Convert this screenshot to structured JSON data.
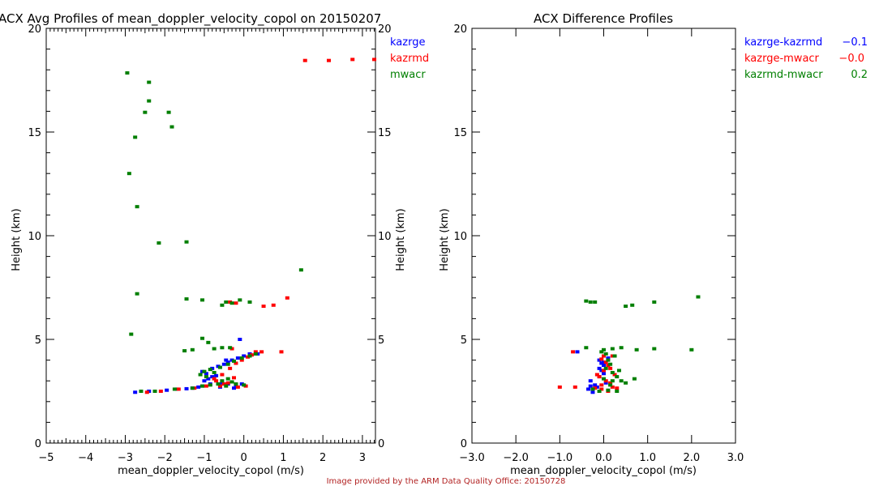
{
  "credit": "Image provided by the ARM Data Quality Office: 20150728",
  "colors": {
    "kazrge": "#0000ff",
    "kazrmd": "#ff0000",
    "mwacr": "#007f00",
    "axis": "#000000",
    "credit": "#b22222"
  },
  "chart_data": [
    {
      "type": "scatter",
      "title": "ACX Avg Profiles of mean_doppler_velocity_copol on 20150207",
      "xlabel": "mean_doppler_velocity_copol (m/s)",
      "ylabel": "Height (km)",
      "ylabel_right": "Height (km)",
      "xlim": [
        -5,
        3.33
      ],
      "ylim": [
        0,
        20
      ],
      "xticks": [
        -5,
        -4,
        -3,
        -2,
        -1,
        0,
        1,
        2,
        3
      ],
      "xtick_labels": [
        "−5",
        "−4",
        "−3",
        "−2",
        "−1",
        "0",
        "1",
        "2",
        "3"
      ],
      "yticks": [
        0,
        5,
        10,
        15,
        20
      ],
      "ytick_labels": [
        "0",
        "5",
        "10",
        "15",
        "20"
      ],
      "grid": false,
      "legend_position": "top-right (outside)",
      "series": [
        {
          "name": "kazrge",
          "color": "#0000ff",
          "points": [
            [
              -2.75,
              2.45
            ],
            [
              -2.4,
              2.5
            ],
            [
              -1.95,
              2.55
            ],
            [
              -1.7,
              2.6
            ],
            [
              -1.45,
              2.62
            ],
            [
              -1.3,
              2.65
            ],
            [
              -1.15,
              2.7
            ],
            [
              -1.05,
              2.75
            ],
            [
              -1.0,
              3.0
            ],
            [
              -0.9,
              3.1
            ],
            [
              -0.8,
              3.2
            ],
            [
              -0.95,
              3.35
            ],
            [
              -1.05,
              3.45
            ],
            [
              -0.8,
              3.6
            ],
            [
              -0.65,
              3.7
            ],
            [
              -0.5,
              3.8
            ],
            [
              -0.4,
              3.9
            ],
            [
              -0.3,
              4.0
            ],
            [
              -0.15,
              4.1
            ],
            [
              0.0,
              4.2
            ],
            [
              0.15,
              4.3
            ],
            [
              0.35,
              4.3
            ],
            [
              -0.55,
              2.9
            ],
            [
              -0.4,
              2.85
            ],
            [
              -0.2,
              2.8
            ],
            [
              -0.05,
              2.85
            ],
            [
              -0.6,
              2.7
            ],
            [
              -0.25,
              2.65
            ],
            [
              -0.1,
              5.0
            ],
            [
              -0.45,
              4.0
            ],
            [
              -0.7,
              3.25
            ],
            [
              -0.85,
              2.85
            ]
          ]
        },
        {
          "name": "kazrmd",
          "color": "#ff0000",
          "points": [
            [
              1.55,
              18.45
            ],
            [
              2.15,
              18.45
            ],
            [
              2.75,
              18.5
            ],
            [
              3.3,
              18.5
            ],
            [
              1.1,
              7.0
            ],
            [
              0.5,
              6.6
            ],
            [
              0.75,
              6.65
            ],
            [
              -0.35,
              6.8
            ],
            [
              -0.2,
              6.75
            ],
            [
              0.95,
              4.4
            ],
            [
              0.45,
              4.4
            ],
            [
              0.3,
              4.4
            ],
            [
              -0.3,
              4.55
            ],
            [
              -2.45,
              2.45
            ],
            [
              -2.1,
              2.5
            ],
            [
              -1.65,
              2.6
            ],
            [
              -1.25,
              2.65
            ],
            [
              -0.95,
              2.75
            ],
            [
              -0.75,
              3.1
            ],
            [
              -0.55,
              3.3
            ],
            [
              -0.35,
              3.6
            ],
            [
              -0.2,
              3.85
            ],
            [
              -0.05,
              4.0
            ],
            [
              0.1,
              4.15
            ],
            [
              0.2,
              4.25
            ],
            [
              -0.6,
              2.75
            ],
            [
              -0.4,
              2.9
            ],
            [
              -0.15,
              2.7
            ],
            [
              0.05,
              2.75
            ],
            [
              -0.5,
              2.85
            ],
            [
              -0.25,
              3.15
            ],
            [
              -0.7,
              3.0
            ]
          ]
        },
        {
          "name": "mwacr",
          "color": "#007f00",
          "points": [
            [
              -2.95,
              17.85
            ],
            [
              -2.4,
              17.4
            ],
            [
              -2.4,
              16.5
            ],
            [
              -2.5,
              15.95
            ],
            [
              -1.9,
              15.95
            ],
            [
              -1.82,
              15.25
            ],
            [
              -2.75,
              14.75
            ],
            [
              -2.9,
              13.0
            ],
            [
              -2.7,
              11.4
            ],
            [
              -2.15,
              9.65
            ],
            [
              -1.45,
              9.7
            ],
            [
              1.45,
              8.35
            ],
            [
              -2.7,
              7.2
            ],
            [
              -1.45,
              6.95
            ],
            [
              -1.05,
              6.9
            ],
            [
              -0.55,
              6.65
            ],
            [
              -0.45,
              6.8
            ],
            [
              -0.3,
              6.75
            ],
            [
              -0.1,
              6.9
            ],
            [
              0.15,
              6.8
            ],
            [
              -2.85,
              5.25
            ],
            [
              -1.05,
              5.05
            ],
            [
              -0.9,
              4.85
            ],
            [
              -1.5,
              4.45
            ],
            [
              -1.3,
              4.5
            ],
            [
              -0.75,
              4.55
            ],
            [
              -0.55,
              4.6
            ],
            [
              -0.35,
              4.6
            ],
            [
              -2.6,
              2.5
            ],
            [
              -2.25,
              2.5
            ],
            [
              -1.75,
              2.6
            ],
            [
              -1.3,
              2.65
            ],
            [
              -1.05,
              2.75
            ],
            [
              -0.85,
              2.8
            ],
            [
              -0.95,
              3.2
            ],
            [
              -1.1,
              3.3
            ],
            [
              -1.0,
              3.45
            ],
            [
              -0.85,
              3.55
            ],
            [
              -0.6,
              3.65
            ],
            [
              -0.4,
              3.8
            ],
            [
              -0.25,
              3.95
            ],
            [
              -0.05,
              4.1
            ],
            [
              0.15,
              4.2
            ],
            [
              0.3,
              4.3
            ],
            [
              -0.65,
              2.85
            ],
            [
              -0.45,
              2.75
            ],
            [
              -0.3,
              2.95
            ],
            [
              -0.2,
              2.85
            ],
            [
              0.0,
              2.8
            ],
            [
              -0.55,
              3.0
            ],
            [
              -0.75,
              3.4
            ],
            [
              -0.4,
              3.1
            ]
          ]
        }
      ]
    },
    {
      "type": "scatter",
      "title": "ACX Difference Profiles",
      "xlabel": "mean_doppler_velocity_copol (m/s)",
      "ylabel": "Height (km)",
      "xlim": [
        -3.0,
        3.0
      ],
      "ylim": [
        0,
        20
      ],
      "xticks": [
        -3,
        -2,
        -1,
        0,
        1,
        2,
        3
      ],
      "xtick_labels": [
        "−3.0",
        "−2.0",
        "−1.0",
        "0.0",
        "1.0",
        "2.0",
        "3.0"
      ],
      "yticks": [
        0,
        5,
        10,
        15,
        20
      ],
      "ytick_labels": [
        "0",
        "5",
        "10",
        "15",
        "20"
      ],
      "grid": false,
      "legend_position": "top-right (outside)",
      "legend": [
        {
          "name": "kazrge-kazrmd",
          "value": "−0.1",
          "color": "#0000ff"
        },
        {
          "name": "kazrge-mwacr",
          "value": "−0.0",
          "color": "#ff0000"
        },
        {
          "name": "kazrmd-mwacr",
          "value": "0.2",
          "color": "#007f00"
        }
      ],
      "series": [
        {
          "name": "kazrge-kazrmd",
          "color": "#0000ff",
          "points": [
            [
              -0.6,
              4.4
            ],
            [
              -0.1,
              4.0
            ],
            [
              -0.05,
              3.85
            ],
            [
              0.0,
              3.75
            ],
            [
              -0.1,
              3.6
            ],
            [
              -0.05,
              3.5
            ],
            [
              0.0,
              3.9
            ],
            [
              -0.3,
              3.0
            ],
            [
              -0.2,
              2.8
            ],
            [
              -0.35,
              2.6
            ],
            [
              -0.25,
              2.45
            ],
            [
              -0.1,
              3.2
            ],
            [
              0.0,
              3.35
            ],
            [
              -0.15,
              2.7
            ],
            [
              0.05,
              2.9
            ],
            [
              -0.3,
              2.75
            ],
            [
              0.1,
              4.1
            ]
          ]
        },
        {
          "name": "kazrge-mwacr",
          "color": "#ff0000",
          "points": [
            [
              -1.0,
              2.7
            ],
            [
              -0.65,
              2.7
            ],
            [
              -0.7,
              4.4
            ],
            [
              0.0,
              4.2
            ],
            [
              -0.05,
              4.05
            ],
            [
              0.05,
              3.9
            ],
            [
              0.1,
              3.75
            ],
            [
              0.0,
              3.5
            ],
            [
              0.15,
              3.6
            ],
            [
              -0.1,
              3.2
            ],
            [
              0.05,
              3.0
            ],
            [
              0.15,
              2.9
            ],
            [
              0.2,
              2.7
            ],
            [
              -0.05,
              2.6
            ],
            [
              0.1,
              2.5
            ],
            [
              -0.2,
              2.65
            ],
            [
              0.3,
              2.65
            ],
            [
              0.25,
              3.3
            ],
            [
              -0.15,
              3.3
            ],
            [
              0.2,
              4.2
            ],
            [
              -0.05,
              2.8
            ]
          ]
        },
        {
          "name": "kazrmd-mwacr",
          "color": "#007f00",
          "points": [
            [
              -0.4,
              6.85
            ],
            [
              -0.3,
              6.8
            ],
            [
              -0.2,
              6.8
            ],
            [
              0.5,
              6.6
            ],
            [
              0.65,
              6.65
            ],
            [
              1.15,
              6.8
            ],
            [
              2.15,
              7.05
            ],
            [
              -0.4,
              4.6
            ],
            [
              0.0,
              4.5
            ],
            [
              0.2,
              4.55
            ],
            [
              0.4,
              4.6
            ],
            [
              0.75,
              4.5
            ],
            [
              1.15,
              4.55
            ],
            [
              2.0,
              4.5
            ],
            [
              0.05,
              4.3
            ],
            [
              0.1,
              4.0
            ],
            [
              0.15,
              3.8
            ],
            [
              0.05,
              3.6
            ],
            [
              0.2,
              3.4
            ],
            [
              0.3,
              3.2
            ],
            [
              0.4,
              3.0
            ],
            [
              0.5,
              2.9
            ],
            [
              0.7,
              3.1
            ],
            [
              0.3,
              2.5
            ],
            [
              0.1,
              2.55
            ],
            [
              -0.1,
              2.5
            ],
            [
              -0.25,
              2.6
            ],
            [
              0.2,
              3.0
            ],
            [
              0.0,
              3.1
            ],
            [
              -0.05,
              4.4
            ],
            [
              0.25,
              4.2
            ],
            [
              0.15,
              2.8
            ],
            [
              0.35,
              3.5
            ]
          ]
        }
      ]
    }
  ]
}
